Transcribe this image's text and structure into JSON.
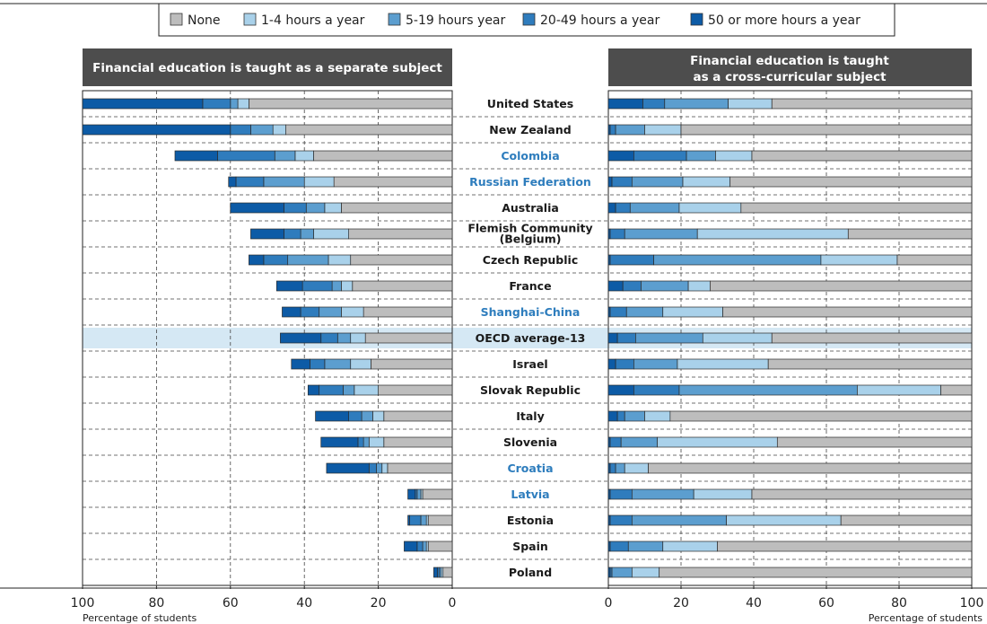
{
  "legend": [
    {
      "label": "None",
      "color": "#bdbdbd"
    },
    {
      "label": "1-4 hours a year",
      "color": "#a9d1ea"
    },
    {
      "label": "5-19 hours year",
      "color": "#5c9ecf"
    },
    {
      "label": "20-49 hours a year",
      "color": "#2f7cbd"
    },
    {
      "label": "50 or more hours a year",
      "color": "#0d5ba6"
    }
  ],
  "panels": {
    "left_title": "Financial education is taught as a separate subject",
    "right_title_line1": "Financial education is taught",
    "right_title_line2": "as a cross-curricular subject"
  },
  "axis": {
    "left_ticks": [
      "100",
      "80",
      "60",
      "40",
      "20",
      "0"
    ],
    "right_ticks": [
      "0",
      "20",
      "40",
      "60",
      "80",
      "100"
    ],
    "left_caption": "Percentage of students",
    "right_caption": "Percentage of students"
  },
  "colors": {
    "highlight_country": "#2e7dbd",
    "normal_country": "#1a1a1a",
    "average_band": "#d5e8f4",
    "title_bg": "#4d4d4d"
  },
  "chart_data": [
    {
      "type": "bar",
      "title": "Financial education is taught as a separate subject",
      "orientation": "horizontal-stacked",
      "xlabel": "Percentage of students",
      "xlim": [
        100,
        0
      ],
      "categories": [
        "United States",
        "New Zealand",
        "Colombia",
        "Russian Federation",
        "Australia",
        "Flemish Community (Belgium)",
        "Czech Republic",
        "France",
        "Shanghai-China",
        "OECD average-13",
        "Israel",
        "Slovak Republic",
        "Italy",
        "Slovenia",
        "Croatia",
        "Latvia",
        "Estonia",
        "Spain",
        "Poland"
      ],
      "series": [
        {
          "name": "None",
          "values": [
            55,
            45,
            37.5,
            32,
            30,
            28,
            27.5,
            27,
            24,
            23.5,
            22,
            20,
            18.5,
            18.5,
            17.5,
            8,
            6.5,
            6.5,
            2.5
          ]
        },
        {
          "name": "1-4 hours a year",
          "values": [
            3,
            3.5,
            5,
            8,
            4.5,
            9.5,
            6,
            3,
            6,
            4,
            5.5,
            6.5,
            3,
            4,
            1.5,
            0.5,
            0.5,
            0.5,
            0.5
          ]
        },
        {
          "name": "5-19 hours year",
          "values": [
            2,
            6,
            5.5,
            11,
            5,
            3.5,
            11,
            2.5,
            6,
            3.5,
            7,
            3,
            3,
            1.5,
            1.5,
            1,
            1.5,
            1,
            0.5
          ]
        },
        {
          "name": "20-49 hours a year",
          "values": [
            7.5,
            5.5,
            15.5,
            7.5,
            6,
            4.5,
            6.5,
            8,
            5,
            4.5,
            4,
            6.5,
            3.5,
            1.5,
            2,
            0.5,
            3,
            1.5,
            0.5
          ]
        },
        {
          "name": "50 or more hours a year",
          "values": [
            32.5,
            40,
            11.5,
            2,
            14.5,
            9,
            4,
            7,
            5,
            11,
            5,
            3,
            9,
            10,
            11.5,
            2,
            0.5,
            3.5,
            1
          ]
        }
      ]
    },
    {
      "type": "bar",
      "title": "Financial education is taught as a cross-curricular subject",
      "orientation": "horizontal-stacked",
      "xlabel": "Percentage of students",
      "xlim": [
        0,
        100
      ],
      "categories": [
        "United States",
        "New Zealand",
        "Colombia",
        "Russian Federation",
        "Australia",
        "Flemish Community (Belgium)",
        "Czech Republic",
        "France",
        "Shanghai-China",
        "OECD average-13",
        "Israel",
        "Slovak Republic",
        "Italy",
        "Slovenia",
        "Croatia",
        "Latvia",
        "Estonia",
        "Spain",
        "Poland"
      ],
      "series": [
        {
          "name": "50 or more hours a year",
          "values": [
            9.5,
            0.5,
            7,
            1,
            2,
            0.5,
            0.5,
            4,
            0.5,
            2.5,
            2,
            7,
            2.5,
            0.5,
            0.5,
            0.5,
            0.5,
            0.5,
            0.5
          ]
        },
        {
          "name": "20-49 hours a year",
          "values": [
            6,
            1.5,
            14.5,
            5.5,
            4,
            4,
            12,
            5,
            4.5,
            5,
            5,
            12.5,
            2,
            3,
            1.5,
            6,
            6,
            5,
            0.5
          ]
        },
        {
          "name": "5-19 hours year",
          "values": [
            17.5,
            8,
            8,
            14,
            13.5,
            20,
            46,
            13,
            10,
            18.5,
            12,
            49,
            5.5,
            10,
            2.5,
            17,
            26,
            9.5,
            5.5
          ]
        },
        {
          "name": "1-4 hours a year",
          "values": [
            12,
            10,
            10,
            13,
            17,
            41.5,
            21,
            6,
            16.5,
            19,
            25,
            23,
            7,
            33,
            6.5,
            16,
            31.5,
            15,
            7.5
          ]
        },
        {
          "name": "None",
          "values": [
            55,
            80,
            60.5,
            66.5,
            63.5,
            34,
            20.5,
            72,
            68.5,
            55,
            56,
            8.5,
            83,
            53.5,
            89,
            60.5,
            36,
            70,
            86
          ]
        }
      ]
    }
  ],
  "countries": [
    {
      "name": "United States",
      "line2": "",
      "style": "normal"
    },
    {
      "name": "New Zealand",
      "line2": "",
      "style": "normal"
    },
    {
      "name": "Colombia",
      "line2": "",
      "style": "highlight"
    },
    {
      "name": "Russian Federation",
      "line2": "",
      "style": "highlight"
    },
    {
      "name": "Australia",
      "line2": "",
      "style": "normal"
    },
    {
      "name": "Flemish Community",
      "line2": "(Belgium)",
      "style": "normal"
    },
    {
      "name": "Czech Republic",
      "line2": "",
      "style": "normal"
    },
    {
      "name": "France",
      "line2": "",
      "style": "normal"
    },
    {
      "name": "Shanghai-China",
      "line2": "",
      "style": "highlight"
    },
    {
      "name": "OECD average-13",
      "line2": "",
      "style": "average"
    },
    {
      "name": "Israel",
      "line2": "",
      "style": "normal"
    },
    {
      "name": "Slovak Republic",
      "line2": "",
      "style": "normal"
    },
    {
      "name": "Italy",
      "line2": "",
      "style": "normal"
    },
    {
      "name": "Slovenia",
      "line2": "",
      "style": "normal"
    },
    {
      "name": "Croatia",
      "line2": "",
      "style": "highlight"
    },
    {
      "name": "Latvia",
      "line2": "",
      "style": "highlight"
    },
    {
      "name": "Estonia",
      "line2": "",
      "style": "normal"
    },
    {
      "name": "Spain",
      "line2": "",
      "style": "normal"
    },
    {
      "name": "Poland",
      "line2": "",
      "style": "normal"
    }
  ]
}
